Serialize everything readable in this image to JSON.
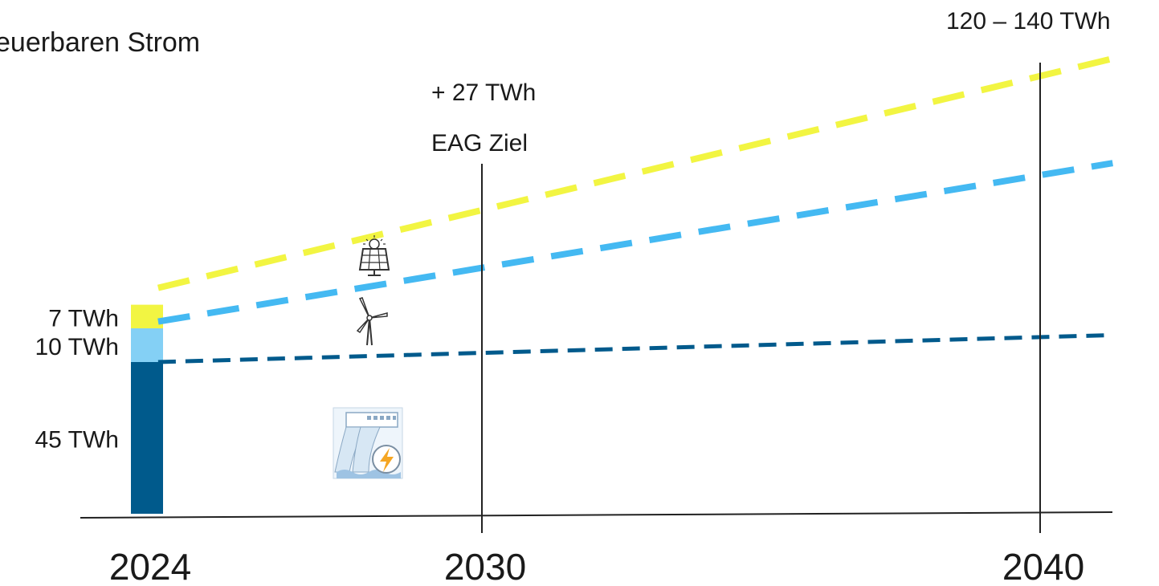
{
  "chart_data": {
    "type": "line",
    "title": "euerbaren Strom",
    "x_ticks": [
      "2024",
      "2030",
      "2040"
    ],
    "x_range": [
      2024,
      2041.4
    ],
    "y_range": [
      0,
      140
    ],
    "bar_2024": {
      "year": 2024,
      "segments": [
        {
          "label": "45 TWh",
          "value": 45,
          "color": "#005a8c"
        },
        {
          "label": "10 TWh",
          "value": 10,
          "color": "#84d0f5"
        },
        {
          "label": "7 TWh",
          "value": 7,
          "color": "#f2f542"
        }
      ]
    },
    "series": [
      {
        "key": "hydro",
        "color": "#005a8c",
        "icon": "hydropower-icon",
        "x": [
          2024.2,
          2041.3
        ],
        "y": [
          45,
          53
        ]
      },
      {
        "key": "wind",
        "color": "#44b9f2",
        "icon": "wind-turbine-icon",
        "x": [
          2024.2,
          2041.3
        ],
        "y": [
          57,
          104
        ]
      },
      {
        "key": "solar",
        "color": "#f2f542",
        "icon": "solar-panel-icon",
        "x": [
          2024.2,
          2041.3
        ],
        "y": [
          67,
          135
        ]
      }
    ],
    "markers": [
      {
        "year": 2030,
        "label_top": "+ 27 TWh",
        "label_bottom": "EAG Ziel"
      },
      {
        "year": 2040,
        "label_top": "120 – 140 TWh"
      }
    ]
  }
}
